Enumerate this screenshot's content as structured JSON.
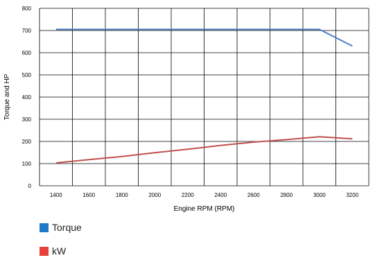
{
  "chart_data": {
    "type": "line",
    "title": "",
    "xlabel": "Engine RPM (RPM)",
    "ylabel": "Torque and HP",
    "x": [
      1400,
      1600,
      1800,
      2000,
      2200,
      2400,
      2600,
      2800,
      3000,
      3200
    ],
    "x_ticks": [
      "1400",
      "1600",
      "1800",
      "2000",
      "2200",
      "2400",
      "2600",
      "2800",
      "3000",
      "3200"
    ],
    "xlim": [
      1300,
      3300
    ],
    "ylim": [
      0,
      800
    ],
    "y_ticks": [
      "0",
      "100",
      "200",
      "300",
      "400",
      "500",
      "600",
      "700",
      "800"
    ],
    "grid": true,
    "legend_position": "bottom-left",
    "series": [
      {
        "name": "Torque",
        "color": "#4a7fc0",
        "values": [
          705,
          705,
          705,
          705,
          705,
          705,
          705,
          705,
          705,
          630
        ]
      },
      {
        "name": "kW",
        "color": "#c0504d",
        "values": [
          103,
          118,
          132,
          149,
          165,
          182,
          197,
          208,
          221,
          212
        ]
      }
    ],
    "legend_colors": [
      "#1f77c8",
      "#e8413c"
    ]
  }
}
